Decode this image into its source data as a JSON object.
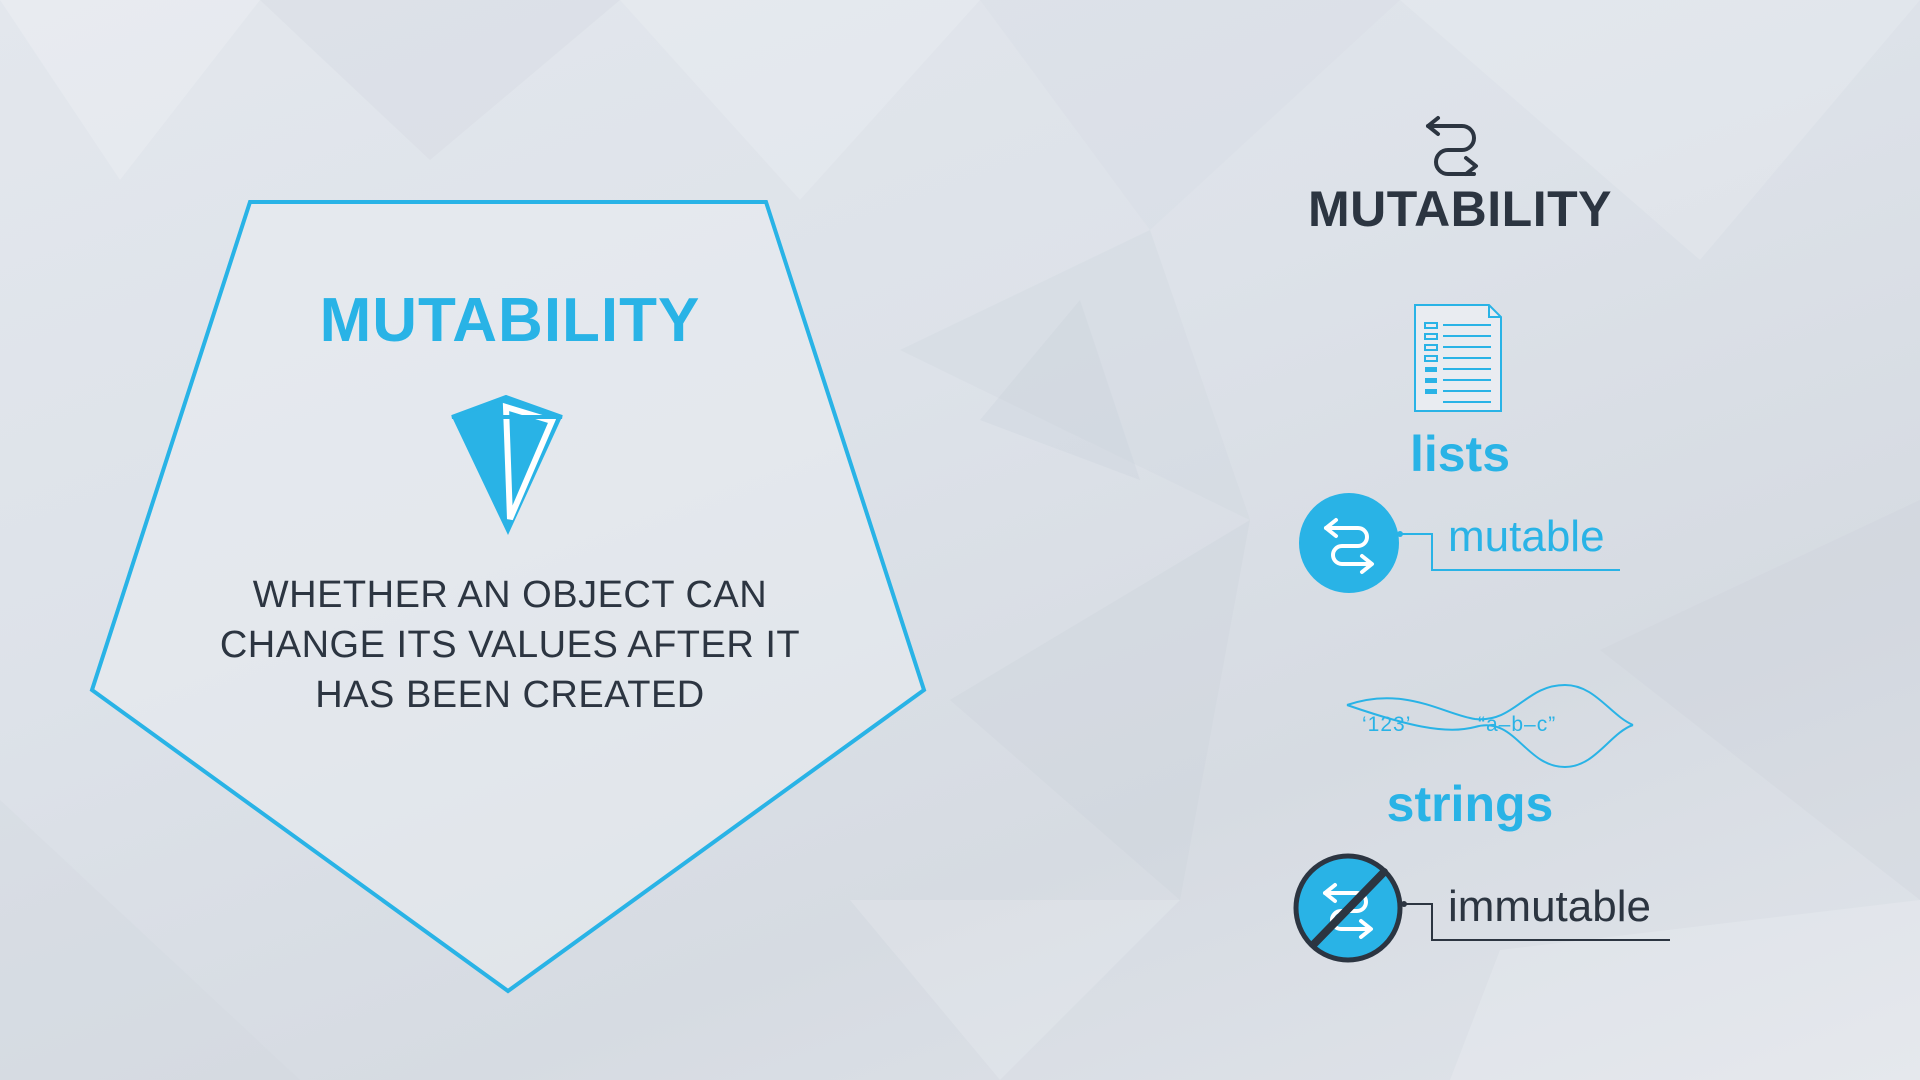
{
  "definition": {
    "title": "MUTABILITY",
    "lines": [
      "WHETHER AN OBJECT CAN",
      "CHANGE ITS VALUES AFTER IT",
      "HAS BEEN CREATED"
    ],
    "icon": "pointer-gem-icon"
  },
  "summary": {
    "title": "MUTABILITY",
    "icon": "swap-arrows-icon",
    "lists": {
      "label": "lists",
      "icon": "document-list-icon",
      "status": "mutable",
      "status_icon": "swap-arrows-circle-icon"
    },
    "strings": {
      "label": "strings",
      "icon": "string-wave-icon",
      "example_1": "‘123’",
      "example_2": "“a–b–c”",
      "status": "immutable",
      "status_icon": "swap-arrows-crossed-icon"
    }
  },
  "colors": {
    "accent": "#29b3e6",
    "dark": "#2c3541",
    "background": "#e0e4ea"
  }
}
